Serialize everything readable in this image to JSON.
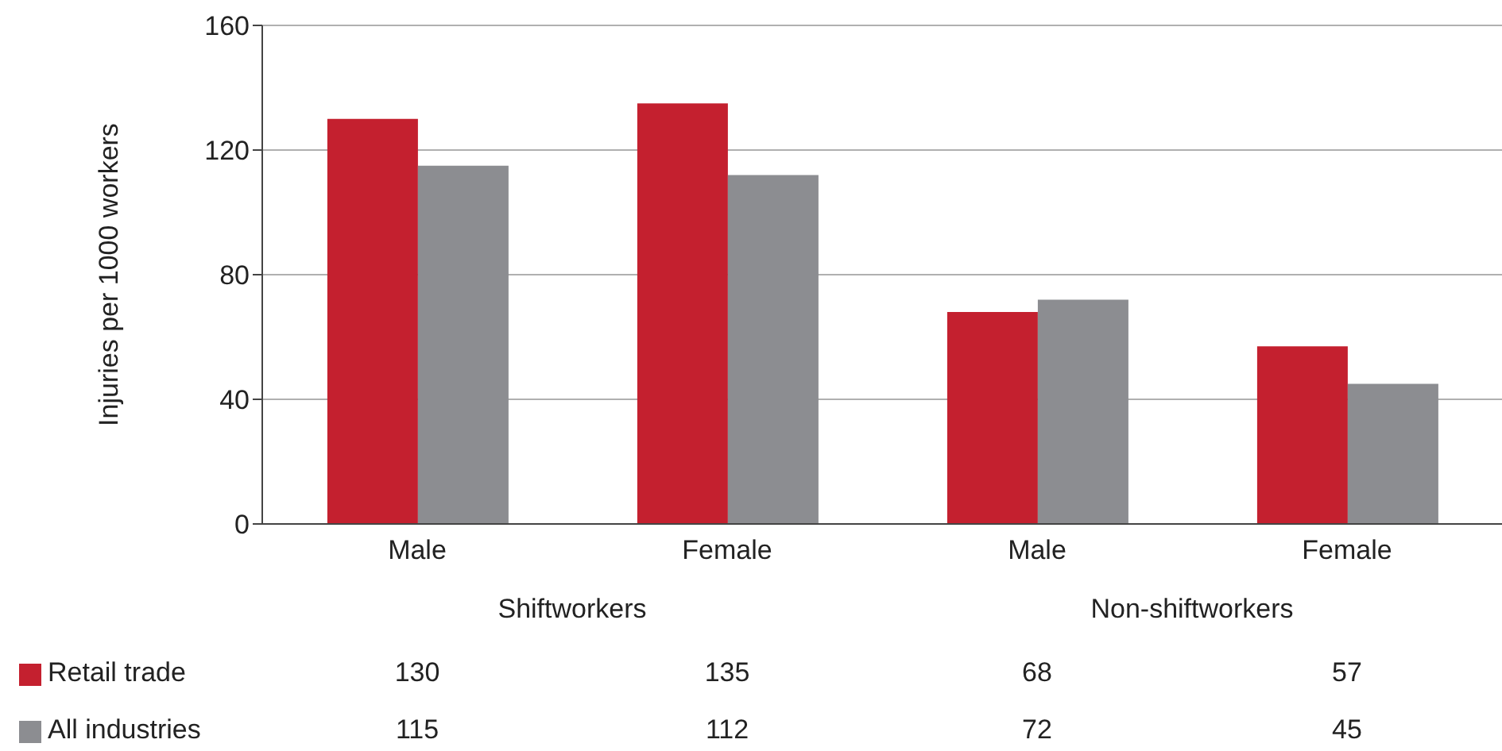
{
  "chart_data": {
    "type": "bar",
    "ylabel": "Injuries per 1000 workers",
    "categories": [
      "Male",
      "Female",
      "Male",
      "Female"
    ],
    "series": [
      {
        "name": "Retail trade",
        "color": "#c4202f",
        "values": [
          130,
          135,
          68,
          57
        ]
      },
      {
        "name": "All industries",
        "color": "#8c8d91",
        "values": [
          115,
          112,
          72,
          45
        ]
      }
    ],
    "annotations": [
      "Shiftworkers",
      "Non-shiftworkers"
    ],
    "ylim": [
      0,
      160
    ],
    "yticks": [
      0,
      40,
      80,
      120,
      160
    ],
    "grid": "y",
    "legend": "bottom",
    "data_labels": true
  }
}
